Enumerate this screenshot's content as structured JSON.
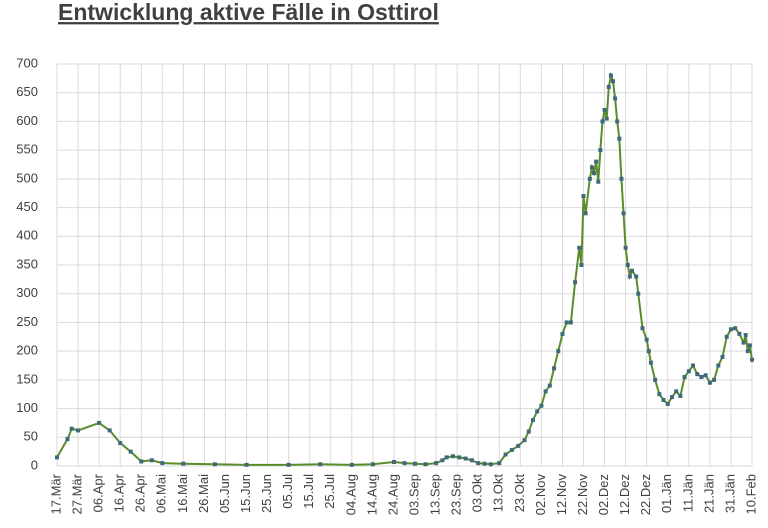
{
  "chart_data": {
    "type": "line",
    "title": "Entwicklung aktive Fälle in Osttirol",
    "xlim": [
      0,
      330
    ],
    "xticks": [
      {
        "value": 0,
        "label": "17.Mär"
      },
      {
        "value": 10,
        "label": "27.Mär"
      },
      {
        "value": 20,
        "label": "06.Apr"
      },
      {
        "value": 30,
        "label": "16.Apr"
      },
      {
        "value": 40,
        "label": "26.Apr"
      },
      {
        "value": 50,
        "label": "06.Mai"
      },
      {
        "value": 60,
        "label": "16.Mai"
      },
      {
        "value": 70,
        "label": "26.Mai"
      },
      {
        "value": 80,
        "label": "05.Jun"
      },
      {
        "value": 90,
        "label": "15.Jun"
      },
      {
        "value": 100,
        "label": "25.Jun"
      },
      {
        "value": 110,
        "label": "05.Jul"
      },
      {
        "value": 120,
        "label": "15.Jul"
      },
      {
        "value": 130,
        "label": "25.Jul"
      },
      {
        "value": 140,
        "label": "04.Aug"
      },
      {
        "value": 150,
        "label": "14.Aug"
      },
      {
        "value": 160,
        "label": "24.Aug"
      },
      {
        "value": 170,
        "label": "03.Sep"
      },
      {
        "value": 180,
        "label": "13.Sep"
      },
      {
        "value": 190,
        "label": "23.Sep"
      },
      {
        "value": 200,
        "label": "03.Okt"
      },
      {
        "value": 210,
        "label": "13.Okt"
      },
      {
        "value": 220,
        "label": "23.Okt"
      },
      {
        "value": 230,
        "label": "02.Nov"
      },
      {
        "value": 240,
        "label": "12.Nov"
      },
      {
        "value": 250,
        "label": "22.Nov"
      },
      {
        "value": 260,
        "label": "02.Dez"
      },
      {
        "value": 270,
        "label": "12.Dez"
      },
      {
        "value": 280,
        "label": "22.Dez"
      },
      {
        "value": 290,
        "label": "01.Jän"
      },
      {
        "value": 300,
        "label": "11.Jän"
      },
      {
        "value": 310,
        "label": "21.Jän"
      },
      {
        "value": 320,
        "label": "31.Jän"
      },
      {
        "value": 330,
        "label": "10.Feb"
      }
    ],
    "ylim": [
      0,
      700
    ],
    "yticks": [
      0,
      50,
      100,
      150,
      200,
      250,
      300,
      350,
      400,
      450,
      500,
      550,
      600,
      650,
      700
    ],
    "grid": true,
    "line_color": "#5b8c2a",
    "marker_color": "#3f6a7a",
    "x": [
      0,
      5,
      7,
      10,
      20,
      25,
      30,
      35,
      40,
      45,
      50,
      60,
      75,
      90,
      110,
      125,
      140,
      150,
      160,
      165,
      170,
      175,
      180,
      183,
      185,
      188,
      191,
      194,
      197,
      200,
      203,
      206,
      210,
      213,
      216,
      219,
      222,
      224,
      226,
      228,
      230,
      232,
      234,
      236,
      238,
      240,
      242,
      244,
      246,
      248,
      249,
      250,
      251,
      253,
      254,
      255,
      256,
      257,
      258,
      259,
      260,
      261,
      262,
      263,
      264,
      265,
      266,
      267,
      268,
      269,
      270,
      271,
      272,
      273,
      275,
      276,
      278,
      280,
      281,
      282,
      284,
      286,
      288,
      290,
      292,
      294,
      296,
      298,
      300,
      302,
      304,
      306,
      308,
      310,
      312,
      314,
      316,
      318,
      320,
      322,
      324,
      326,
      327,
      328,
      329,
      330
    ],
    "series": [
      {
        "values": [
          15,
          47,
          65,
          62,
          75,
          62,
          40,
          25,
          8,
          10,
          5,
          4,
          3,
          2,
          2,
          3,
          2,
          3,
          7,
          5,
          4,
          3,
          5,
          10,
          15,
          17,
          15,
          13,
          10,
          5,
          4,
          3,
          5,
          20,
          28,
          35,
          45,
          60,
          80,
          95,
          105,
          130,
          140,
          170,
          200,
          230,
          250,
          250,
          320,
          380,
          350,
          470,
          440,
          500,
          520,
          510,
          530,
          495,
          550,
          600,
          620,
          605,
          660,
          680,
          670,
          640,
          600,
          570,
          500,
          440,
          380,
          350,
          330,
          340,
          330,
          300,
          240,
          220,
          200,
          180,
          150,
          125,
          115,
          108,
          120,
          130,
          122,
          155,
          165,
          175,
          160,
          155,
          158,
          145,
          150,
          175,
          190,
          225,
          238,
          240,
          230,
          215,
          228,
          200,
          210,
          185
        ]
      }
    ]
  }
}
